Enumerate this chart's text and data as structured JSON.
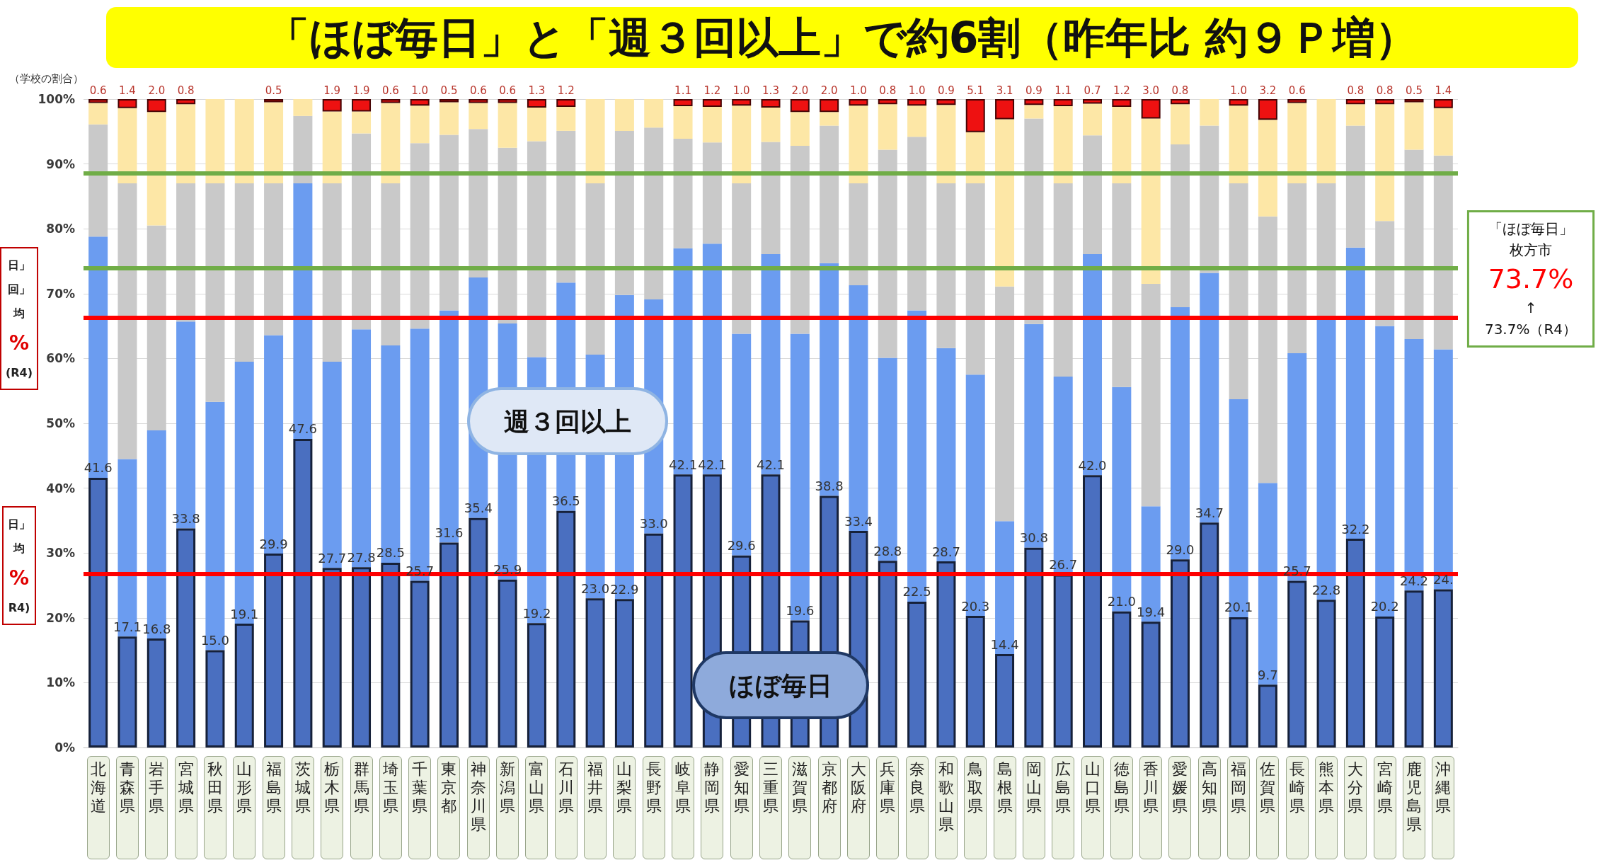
{
  "chart_data": {
    "type": "bar",
    "stacked": true,
    "ylabel": "（学校の割合）",
    "categories": [
      "北海道",
      "青森県",
      "岩手県",
      "宮城県",
      "秋田県",
      "山形県",
      "福島県",
      "茨城県",
      "栃木県",
      "群馬県",
      "埼玉県",
      "千葉県",
      "東京都",
      "神奈川県",
      "新潟県",
      "富山県",
      "石川県",
      "福井県",
      "山梨県",
      "長野県",
      "岐阜県",
      "静岡県",
      "愛知県",
      "三重県",
      "滋賀県",
      "京都府",
      "大阪府",
      "兵庫県",
      "奈良県",
      "和歌山県",
      "鳥取県",
      "島根県",
      "岡山県",
      "広島県",
      "山口県",
      "徳島県",
      "香川県",
      "愛媛県",
      "高知県",
      "福岡県",
      "佐賀県",
      "長崎県",
      "熊本県",
      "大分県",
      "宮崎県",
      "鹿児島県",
      "沖縄県"
    ],
    "series": [
      {
        "name": "ほぼ毎日",
        "color": "#4a6fc0",
        "values": [
          41.6,
          17.1,
          16.8,
          33.8,
          15.0,
          19.1,
          29.9,
          47.6,
          27.7,
          27.8,
          28.5,
          25.7,
          31.6,
          35.4,
          25.9,
          19.2,
          36.5,
          23.0,
          22.9,
          33.0,
          42.1,
          42.1,
          29.6,
          42.1,
          19.6,
          38.8,
          33.4,
          28.8,
          22.5,
          28.7,
          20.3,
          14.4,
          30.8,
          26.7,
          42.0,
          21.0,
          19.4,
          29.0,
          34.7,
          20.1,
          9.7,
          25.7,
          22.8,
          32.2,
          20.2,
          24.2,
          24.4
        ],
        "value_labels": [
          "41.6",
          "17.1",
          "16.8",
          "33.8",
          "15.0",
          "19.1",
          "29.9",
          "47.6",
          "27.7",
          "27.8",
          "28.5",
          "25.7",
          "31.6",
          "35.4",
          "25.9",
          "19.2",
          "36.5",
          "23.0",
          "22.9",
          "33.0",
          "42.1",
          "42.1",
          "29.6",
          "42.1",
          "19.6",
          "38.8",
          "33.4",
          "28.8",
          "22.5",
          "28.7",
          "20.3",
          "14.4",
          "30.8",
          "26.7",
          "42.0",
          "21.0",
          "19.4",
          "29.0",
          "34.7",
          "20.1",
          "9.7",
          "25.7",
          "22.8",
          "32.2",
          "20.2",
          "24.2",
          "24."
        ]
      },
      {
        "name": "週３回以上",
        "color": "#6b9cf0",
        "values": [
          37.2,
          27.4,
          32.1,
          31.9,
          38.3,
          40.4,
          33.7,
          39.4,
          31.8,
          36.7,
          33.5,
          38.9,
          35.8,
          37.1,
          39.5,
          41.0,
          35.2,
          37.6,
          46.9,
          36.1,
          34.9,
          35.6,
          34.2,
          34.0,
          44.2,
          35.9,
          37.9,
          31.3,
          44.9,
          32.9,
          37.2,
          20.5,
          34.5,
          30.5,
          34.1,
          34.6,
          17.8,
          38.9,
          38.5,
          33.6,
          31.1,
          35.1,
          43.2,
          44.9,
          44.8,
          38.8,
          37.0
        ]
      },
      {
        "color": "#c9c9c9",
        "values": [
          17.3,
          42.5,
          31.6,
          21.3,
          33.7,
          27.5,
          23.4,
          10.4,
          27.5,
          30.2,
          25.0,
          28.6,
          27.1,
          22.9,
          27.1,
          33.3,
          23.4,
          26.4,
          25.3,
          26.5,
          16.9,
          15.6,
          23.2,
          17.3,
          29.0,
          21.2,
          15.7,
          32.1,
          26.8,
          25.4,
          29.5,
          36.2,
          31.7,
          29.8,
          18.3,
          31.4,
          34.3,
          25.1,
          22.7,
          33.3,
          41.1,
          26.2,
          21.0,
          18.8,
          16.2,
          29.2,
          29.9
        ]
      },
      {
        "color": "#fde7a6",
        "values": [
          3.3,
          11.6,
          17.5,
          12.2,
          13.0,
          13.0,
          12.5,
          2.6,
          11.1,
          3.4,
          12.4,
          5.8,
          5.0,
          4.0,
          6.9,
          5.2,
          3.7,
          13.0,
          4.9,
          4.4,
          5.0,
          5.5,
          12.0,
          5.3,
          5.2,
          2.1,
          12.0,
          7.0,
          4.8,
          12.1,
          7.9,
          25.8,
          2.1,
          11.9,
          4.9,
          11.8,
          25.5,
          6.2,
          4.1,
          12.0,
          14.9,
          12.4,
          13.0,
          3.3,
          18.0,
          7.3,
          7.3
        ]
      },
      {
        "color": "#ee1111",
        "values": [
          0.6,
          1.4,
          2.0,
          0.8,
          null,
          null,
          0.5,
          null,
          1.9,
          1.9,
          0.6,
          1.0,
          0.5,
          0.6,
          0.6,
          1.3,
          1.2,
          null,
          null,
          null,
          1.1,
          1.2,
          1.0,
          1.3,
          2.0,
          2.0,
          1.0,
          0.8,
          1.0,
          0.9,
          5.1,
          3.1,
          0.9,
          1.1,
          0.7,
          1.2,
          3.0,
          0.8,
          null,
          1.0,
          3.2,
          0.6,
          null,
          0.8,
          0.8,
          0.5,
          1.4
        ],
        "value_labels": [
          "0.6",
          "1.4",
          "2.0",
          "0.8",
          null,
          null,
          "0.5",
          null,
          "1.9",
          "1.9",
          "0.6",
          "1.0",
          "0.5",
          "0.6",
          "0.6",
          "1.3",
          "1.2",
          null,
          null,
          null,
          "1.1",
          "1.2",
          "1.0",
          "1.3",
          "2.0",
          "2.0",
          "1.0",
          "0.8",
          "1.0",
          "0.9",
          "5.1",
          "3.1",
          "0.9",
          "1.1",
          "0.7",
          "1.2",
          "3.0",
          "0.8",
          null,
          "1.0",
          "3.2",
          "0.6",
          null,
          "0.8",
          "0.8",
          "0.5",
          "1.4"
        ]
      }
    ],
    "ylim": [
      0,
      100
    ],
    "yticks": [
      {
        "value": 0,
        "label": "0%"
      },
      {
        "value": 10,
        "label": "10%"
      },
      {
        "value": 20,
        "label": "20%"
      },
      {
        "value": 30,
        "label": "30%"
      },
      {
        "value": 40,
        "label": "40%"
      },
      {
        "value": 50,
        "label": "50%"
      },
      {
        "value": 60,
        "label": "60%"
      },
      {
        "value": 70,
        "label": "70%"
      },
      {
        "value": 80,
        "label": "80%"
      },
      {
        "value": 90,
        "label": "90%"
      },
      {
        "value": 100,
        "label": "100%"
      }
    ],
    "grid": "y",
    "ref_lines": [
      {
        "axis": "y",
        "value": 88.6,
        "color": "#70ad47"
      },
      {
        "axis": "y",
        "value": 73.9,
        "color": "#70ad47"
      },
      {
        "axis": "y",
        "value": 66.3,
        "color": "#ff0000"
      },
      {
        "axis": "y",
        "value": 26.8,
        "color": "#ff0000"
      }
    ],
    "annotations": [
      "「ほぼ毎日」と「週３回以上」で約6割（昨年比 約９Ｐ増）",
      "「ほぼ毎日」",
      "枚方市",
      "73.7%",
      "↑",
      "73.7%（R4）",
      "日」",
      "回」",
      "均",
      "%",
      "(R4)",
      "日」",
      "均",
      "%",
      "R4)"
    ]
  }
}
